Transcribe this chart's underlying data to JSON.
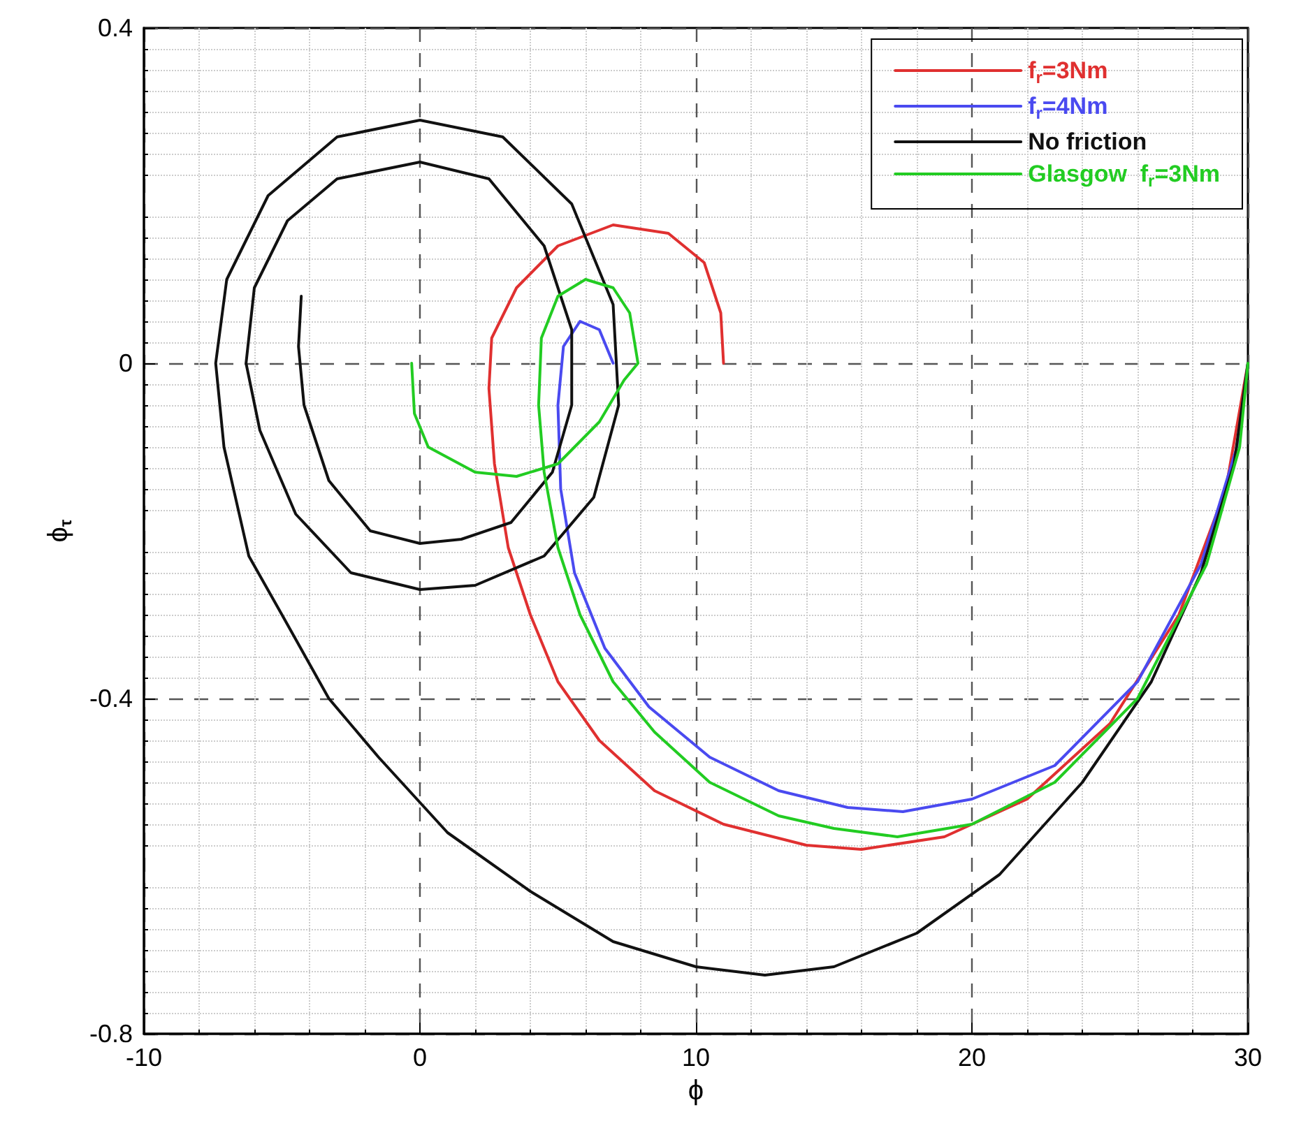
{
  "chart_data": {
    "type": "line",
    "xlabel": "ϕ",
    "ylabel": "ϕ$_{τ}$",
    "xlim": [
      -10,
      30
    ],
    "ylim": [
      -0.8,
      0.4
    ],
    "xticks": [
      -10,
      0,
      10,
      20,
      30
    ],
    "yticks": [
      -0.8,
      -0.4,
      0,
      0.4
    ],
    "grid": true,
    "legend": "top right",
    "marker": "none",
    "line_style": "solid",
    "series": [
      {
        "name": "f$_{r}$=3Nm",
        "color": "#e03030",
        "x": [
          11,
          10.9,
          10.3,
          9,
          7,
          5,
          3.5,
          2.6,
          2.5,
          2.7,
          3.2,
          4,
          5,
          6.5,
          8.5,
          11,
          14,
          16,
          19,
          22,
          25,
          27.5,
          29.2,
          30
        ],
        "values": [
          0,
          0.06,
          0.12,
          0.155,
          0.165,
          0.14,
          0.09,
          0.03,
          -0.03,
          -0.12,
          -0.22,
          -0.3,
          -0.38,
          -0.45,
          -0.51,
          -0.55,
          -0.575,
          -0.58,
          -0.565,
          -0.52,
          -0.43,
          -0.3,
          -0.15,
          0
        ]
      },
      {
        "name": "f$_{r}$=4Nm",
        "color": "#4a4af0",
        "x": [
          7,
          6.5,
          5.8,
          5.2,
          5,
          5.1,
          5.6,
          6.7,
          8.3,
          10.5,
          13,
          15.5,
          17.5,
          20,
          23,
          26,
          28.3,
          29.6,
          30
        ],
        "values": [
          0,
          0.04,
          0.05,
          0.02,
          -0.05,
          -0.15,
          -0.25,
          -0.34,
          -0.41,
          -0.47,
          -0.51,
          -0.53,
          -0.535,
          -0.52,
          -0.48,
          -0.38,
          -0.24,
          -0.1,
          0
        ]
      },
      {
        "name": "No friction",
        "color": "#111111",
        "x": [
          30,
          29.5,
          28.3,
          26.5,
          24,
          21,
          18,
          15,
          12.5,
          10,
          7,
          4,
          1,
          -1.5,
          -3.3,
          -5,
          -6.2,
          -7.1,
          -7.4,
          -7,
          -5.5,
          -3,
          0,
          3,
          5.5,
          7,
          7.2,
          6.3,
          4.5,
          2,
          0,
          -2.5,
          -4.5,
          -5.8,
          -6.3,
          -6,
          -4.8,
          -3,
          0,
          2.5,
          4.5,
          5.5,
          5.5,
          4.8,
          3.3,
          1.5,
          0,
          -1.8,
          -3.3,
          -4.2,
          -4.4,
          -4.3
        ],
        "values": [
          0,
          -0.12,
          -0.25,
          -0.38,
          -0.5,
          -0.61,
          -0.68,
          -0.72,
          -0.73,
          -0.72,
          -0.69,
          -0.63,
          -0.56,
          -0.47,
          -0.4,
          -0.3,
          -0.23,
          -0.1,
          0,
          0.1,
          0.2,
          0.27,
          0.29,
          0.27,
          0.19,
          0.07,
          -0.05,
          -0.16,
          -0.23,
          -0.265,
          -0.27,
          -0.25,
          -0.18,
          -0.08,
          0,
          0.09,
          0.17,
          0.22,
          0.24,
          0.22,
          0.14,
          0.04,
          -0.05,
          -0.13,
          -0.19,
          -0.21,
          -0.215,
          -0.2,
          -0.14,
          -0.05,
          0.02,
          0.08
        ]
      },
      {
        "name": "Glasgow  f$_{r}$=3Nm",
        "color": "#22cc22",
        "x": [
          -0.3,
          -0.2,
          0.3,
          2,
          3.5,
          5,
          6.5,
          7.4,
          7.9,
          7.6,
          7,
          6,
          5,
          4.4,
          4.3,
          4.5,
          5,
          5.8,
          7,
          8.5,
          10.5,
          13,
          15,
          17.3,
          20,
          23,
          26,
          28.5,
          29.7,
          30
        ],
        "values": [
          0,
          -0.06,
          -0.1,
          -0.13,
          -0.135,
          -0.12,
          -0.07,
          -0.02,
          0,
          0.06,
          0.09,
          0.1,
          0.08,
          0.03,
          -0.05,
          -0.13,
          -0.22,
          -0.3,
          -0.38,
          -0.44,
          -0.5,
          -0.54,
          -0.555,
          -0.565,
          -0.55,
          -0.5,
          -0.4,
          -0.24,
          -0.1,
          0
        ]
      }
    ]
  }
}
